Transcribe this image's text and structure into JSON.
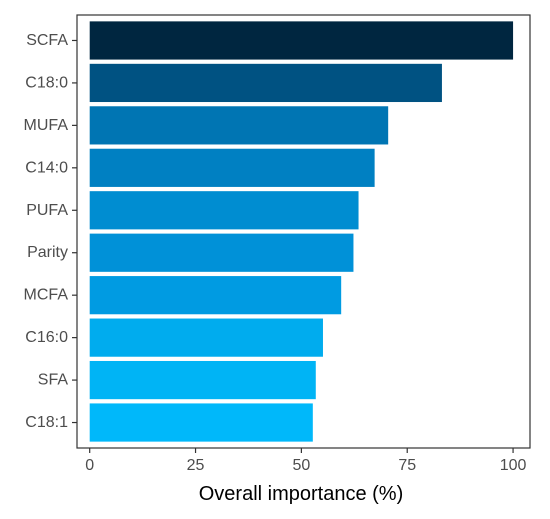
{
  "chart_data": {
    "type": "bar",
    "orientation": "horizontal",
    "categories": [
      "SCFA",
      "C18:0",
      "MUFA",
      "C14:0",
      "PUFA",
      "Parity",
      "MCFA",
      "C16:0",
      "SFA",
      "C18:1"
    ],
    "values": [
      100,
      83.2,
      70.5,
      67.3,
      63.5,
      62.3,
      59.4,
      55.1,
      53.4,
      52.7
    ],
    "xlabel": "Overall importance (%)",
    "ylabel": "",
    "title": "",
    "xlim": [
      -3,
      104
    ],
    "x_ticks": [
      0,
      25,
      50,
      75,
      100
    ],
    "grid": false,
    "legend": "none",
    "colors": [
      "#002640",
      "#005282",
      "#0075B3",
      "#0080C2",
      "#008DD1",
      "#0091D8",
      "#009BE2",
      "#00ACEE",
      "#00B4F5",
      "#00B8FA"
    ]
  }
}
